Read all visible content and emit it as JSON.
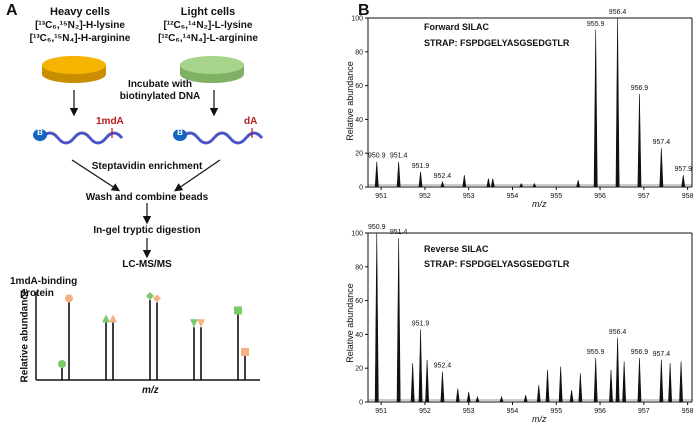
{
  "panel_a": {
    "letter": "A",
    "heavy_title": "Heavy cells",
    "heavy_line1": "[¹³C₆,¹⁵N₂]-H-lysine",
    "heavy_line2": "[¹³C₆,¹⁵N₄]-H-arginine",
    "light_title": "Light cells",
    "light_line1": "[¹²C₆,¹⁴N₂]-L-lysine",
    "light_line2": "[¹²C₆,¹⁴N₄]-L-arginine",
    "incubate_line1": "Incubate with",
    "incubate_line2": "biotinylated DNA",
    "biotin_label": "B",
    "mod_heavy": "1mdA",
    "mod_light": "dA",
    "step_enrich": "Steptavidin enrichment",
    "step_wash": "Wash and combine beads",
    "step_digest": "In-gel tryptic digestion",
    "step_lcms": "LC-MS/MS",
    "binding_line1": "1mdA-binding",
    "binding_line2": "protein",
    "ylabel": "Relative abundance",
    "xlabel": "m/z",
    "colors": {
      "heavy_dish": "#f5b400",
      "light_dish": "#a6d48a",
      "dna": "#4a52c8",
      "mod_text": "#b71c1c",
      "biotin": "#1565c0"
    },
    "schematic_peaks": [
      {
        "pair": 1,
        "heavy": 0.15,
        "light": 0.97,
        "heavy_marker": "circle",
        "light_marker": "circle",
        "heavy_color": "#7cc96a",
        "light_color": "#f4b183"
      },
      {
        "pair": 2,
        "heavy": 0.72,
        "light": 0.72,
        "heavy_marker": "triangle",
        "light_marker": "triangle",
        "heavy_color": "#7cc96a",
        "light_color": "#f4b183"
      },
      {
        "pair": 3,
        "heavy": 1.0,
        "light": 0.97,
        "heavy_marker": "diamond",
        "light_marker": "diamond",
        "heavy_color": "#7cc96a",
        "light_color": "#f4b183"
      },
      {
        "pair": 4,
        "heavy": 0.66,
        "light": 0.66,
        "heavy_marker": "triangle-down",
        "light_marker": "triangle-down",
        "heavy_color": "#7cc96a",
        "light_color": "#f4b183"
      },
      {
        "pair": 5,
        "heavy": 0.82,
        "light": 0.3,
        "heavy_marker": "square",
        "light_marker": "square",
        "heavy_color": "#7cc96a",
        "light_color": "#f4b183"
      }
    ]
  },
  "panel_b": {
    "letter": "B",
    "ylabel": "Relative abundance",
    "xlabel": "m/z",
    "forward": {
      "title": "Forward SILAC",
      "peptide": "STRAP: FSPDGELYASGSEDGTLR",
      "xlim": [
        950.7,
        958.1
      ],
      "ylim": [
        0,
        100
      ],
      "xticks": [
        951,
        952,
        953,
        954,
        955,
        956,
        957,
        958
      ],
      "yticks": [
        0,
        20,
        40,
        60,
        80,
        100
      ],
      "peaks": [
        {
          "mz": 950.9,
          "ab": 15,
          "label": "950.9"
        },
        {
          "mz": 951.4,
          "ab": 15,
          "label": "951.4"
        },
        {
          "mz": 951.9,
          "ab": 9,
          "label": "951.9"
        },
        {
          "mz": 952.4,
          "ab": 3,
          "label": "952.4"
        },
        {
          "mz": 952.9,
          "ab": 7,
          "label": ""
        },
        {
          "mz": 953.45,
          "ab": 5,
          "label": ""
        },
        {
          "mz": 953.55,
          "ab": 5,
          "label": ""
        },
        {
          "mz": 954.2,
          "ab": 2,
          "label": ""
        },
        {
          "mz": 954.5,
          "ab": 2,
          "label": ""
        },
        {
          "mz": 955.5,
          "ab": 4,
          "label": ""
        },
        {
          "mz": 955.9,
          "ab": 93,
          "label": "955.9"
        },
        {
          "mz": 956.4,
          "ab": 100,
          "label": "956.4"
        },
        {
          "mz": 956.9,
          "ab": 55,
          "label": "956.9"
        },
        {
          "mz": 957.4,
          "ab": 23,
          "label": "957.4"
        },
        {
          "mz": 957.9,
          "ab": 7,
          "label": "957.9"
        }
      ]
    },
    "reverse": {
      "title": "Reverse  SILAC",
      "peptide": "STRAP: FSPDGELYASGSEDGTLR",
      "xlim": [
        950.7,
        958.1
      ],
      "ylim": [
        0,
        100
      ],
      "xticks": [
        951,
        952,
        953,
        954,
        955,
        956,
        957,
        958
      ],
      "yticks": [
        0,
        20,
        40,
        60,
        80,
        100
      ],
      "peaks": [
        {
          "mz": 950.9,
          "ab": 100,
          "label": "950.9"
        },
        {
          "mz": 951.4,
          "ab": 97,
          "label": "951.4"
        },
        {
          "mz": 951.72,
          "ab": 23,
          "label": ""
        },
        {
          "mz": 951.9,
          "ab": 43,
          "label": "951.9"
        },
        {
          "mz": 952.05,
          "ab": 25,
          "label": ""
        },
        {
          "mz": 952.4,
          "ab": 18,
          "label": "952.4"
        },
        {
          "mz": 952.75,
          "ab": 8,
          "label": ""
        },
        {
          "mz": 953.0,
          "ab": 6,
          "label": ""
        },
        {
          "mz": 953.2,
          "ab": 3,
          "label": ""
        },
        {
          "mz": 953.75,
          "ab": 3,
          "label": ""
        },
        {
          "mz": 954.3,
          "ab": 4,
          "label": ""
        },
        {
          "mz": 954.6,
          "ab": 10,
          "label": ""
        },
        {
          "mz": 954.8,
          "ab": 19,
          "label": ""
        },
        {
          "mz": 955.1,
          "ab": 21,
          "label": ""
        },
        {
          "mz": 955.35,
          "ab": 7,
          "label": ""
        },
        {
          "mz": 955.55,
          "ab": 17,
          "label": ""
        },
        {
          "mz": 955.9,
          "ab": 26,
          "label": "955.9"
        },
        {
          "mz": 956.25,
          "ab": 19,
          "label": ""
        },
        {
          "mz": 956.4,
          "ab": 38,
          "label": "956.4"
        },
        {
          "mz": 956.55,
          "ab": 24,
          "label": ""
        },
        {
          "mz": 956.9,
          "ab": 26,
          "label": "956.9"
        },
        {
          "mz": 957.4,
          "ab": 25,
          "label": "957.4"
        },
        {
          "mz": 957.6,
          "ab": 23,
          "label": ""
        },
        {
          "mz": 957.85,
          "ab": 24,
          "label": ""
        }
      ]
    }
  }
}
